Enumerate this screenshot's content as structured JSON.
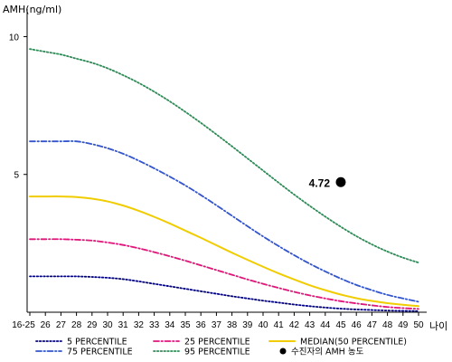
{
  "chart_data": {
    "type": "line",
    "ylabel": "AMH(ng/ml)",
    "xlabel": "나이",
    "x": [
      "16-25",
      "26",
      "27",
      "28",
      "29",
      "30",
      "31",
      "32",
      "33",
      "34",
      "35",
      "36",
      "37",
      "38",
      "39",
      "40",
      "41",
      "42",
      "43",
      "44",
      "45",
      "46",
      "47",
      "48",
      "49",
      "50"
    ],
    "ylim": [
      0,
      11
    ],
    "yticks": [
      5,
      10
    ],
    "grid": false,
    "legend_position": "bottom",
    "series": [
      {
        "name": "5 PERCENTILE",
        "color": "#000080",
        "style": "dotted",
        "values": [
          1.3,
          1.3,
          1.3,
          1.3,
          1.28,
          1.25,
          1.2,
          1.12,
          1.03,
          0.94,
          0.85,
          0.76,
          0.67,
          0.58,
          0.5,
          0.42,
          0.35,
          0.28,
          0.22,
          0.17,
          0.13,
          0.1,
          0.08,
          0.06,
          0.05,
          0.04
        ]
      },
      {
        "name": "75 PERCENTILE",
        "color": "#3355cc",
        "style": "dashdot",
        "values": [
          6.2,
          6.2,
          6.2,
          6.2,
          6.1,
          5.95,
          5.75,
          5.5,
          5.22,
          4.92,
          4.6,
          4.25,
          3.88,
          3.5,
          3.12,
          2.75,
          2.4,
          2.07,
          1.76,
          1.48,
          1.22,
          0.99,
          0.8,
          0.63,
          0.5,
          0.38
        ]
      },
      {
        "name": "25 PERCENTILE",
        "color": "#e0157a",
        "style": "dashdot",
        "values": [
          2.65,
          2.65,
          2.65,
          2.63,
          2.6,
          2.53,
          2.44,
          2.32,
          2.18,
          2.03,
          1.87,
          1.7,
          1.53,
          1.36,
          1.19,
          1.03,
          0.88,
          0.74,
          0.61,
          0.5,
          0.4,
          0.32,
          0.25,
          0.19,
          0.15,
          0.12
        ]
      },
      {
        "name": "95 PERCENTILE",
        "color": "#2e8b57",
        "style": "dotted",
        "values": [
          9.55,
          9.45,
          9.35,
          9.2,
          9.05,
          8.85,
          8.6,
          8.32,
          8.0,
          7.65,
          7.27,
          6.87,
          6.45,
          6.02,
          5.58,
          5.14,
          4.7,
          4.27,
          3.86,
          3.47,
          3.1,
          2.76,
          2.46,
          2.2,
          1.98,
          1.8
        ]
      },
      {
        "name": "MEDIAN(50 PERCENTILE)",
        "color": "#f0cc00",
        "style": "solid",
        "values": [
          4.2,
          4.2,
          4.2,
          4.18,
          4.12,
          4.02,
          3.87,
          3.68,
          3.46,
          3.22,
          2.96,
          2.7,
          2.43,
          2.16,
          1.9,
          1.65,
          1.41,
          1.19,
          0.98,
          0.8,
          0.64,
          0.51,
          0.41,
          0.33,
          0.27,
          0.22
        ]
      }
    ],
    "marker": {
      "name": "수진자의 AMH 농도",
      "x": "45",
      "y": 4.72,
      "label": "4.72",
      "color": "#000000"
    }
  }
}
